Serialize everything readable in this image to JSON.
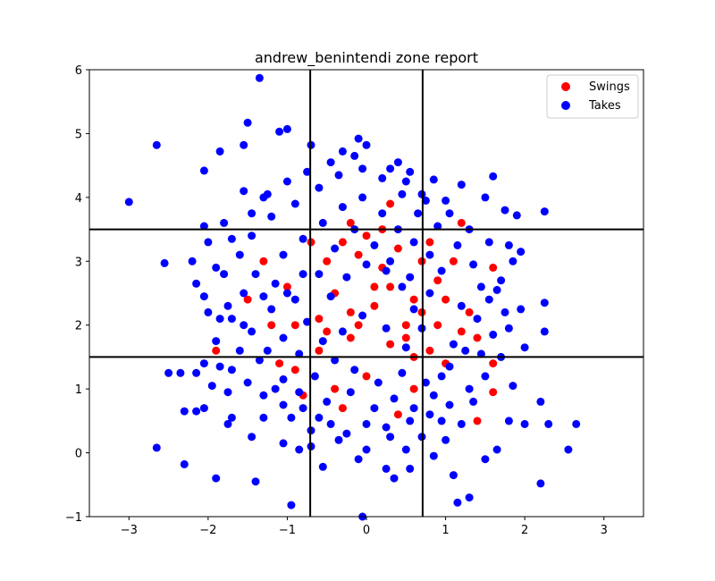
{
  "chart_data": {
    "type": "scatter",
    "title": "andrew_benintendi zone report",
    "xlabel": "",
    "ylabel": "",
    "xlim": [
      -3.5,
      3.5
    ],
    "ylim": [
      -1,
      6
    ],
    "xticks": [
      -3,
      -2,
      -1,
      0,
      1,
      2,
      3
    ],
    "yticks": [
      -1,
      0,
      1,
      2,
      3,
      4,
      5,
      6
    ],
    "grid": false,
    "legend_position": "top-right",
    "strike_zone": {
      "x": [
        -0.71,
        0.71
      ],
      "y": [
        1.5,
        3.5
      ]
    },
    "series": [
      {
        "name": "Swings",
        "color": "#ff0000",
        "points": [
          [
            1.6,
            2.9
          ],
          [
            1.2,
            3.6
          ],
          [
            1.1,
            3.0
          ],
          [
            0.8,
            1.6
          ],
          [
            1.2,
            1.9
          ],
          [
            0.5,
            1.8
          ],
          [
            0.3,
            3.9
          ],
          [
            0.1,
            2.6
          ],
          [
            -0.2,
            2.2
          ],
          [
            -0.5,
            3.0
          ],
          [
            -0.3,
            3.3
          ],
          [
            0.6,
            2.4
          ],
          [
            0.9,
            2.0
          ],
          [
            -0.6,
            1.6
          ],
          [
            -0.9,
            1.3
          ],
          [
            -1.2,
            2.0
          ],
          [
            -1.0,
            2.6
          ],
          [
            -0.7,
            3.3
          ],
          [
            0.4,
            3.2
          ],
          [
            0.7,
            3.0
          ],
          [
            0.9,
            2.7
          ],
          [
            1.3,
            2.2
          ],
          [
            1.4,
            1.8
          ],
          [
            1.0,
            1.4
          ],
          [
            0.6,
            1.0
          ],
          [
            0.0,
            1.2
          ],
          [
            -0.4,
            1.0
          ],
          [
            -0.8,
            0.9
          ],
          [
            -1.1,
            1.4
          ],
          [
            -1.5,
            2.4
          ],
          [
            -1.3,
            3.0
          ],
          [
            -0.2,
            3.6
          ],
          [
            0.2,
            3.5
          ],
          [
            0.4,
            0.6
          ],
          [
            1.6,
            0.95
          ],
          [
            1.6,
            1.4
          ],
          [
            1.4,
            0.5
          ],
          [
            -1.9,
            1.6
          ],
          [
            -0.3,
            0.7
          ],
          [
            0.5,
            2.0
          ],
          [
            0.2,
            2.9
          ],
          [
            -0.1,
            3.1
          ],
          [
            0.3,
            1.7
          ],
          [
            0.1,
            2.3
          ],
          [
            -0.4,
            2.5
          ],
          [
            -0.6,
            2.1
          ],
          [
            0.8,
            3.3
          ],
          [
            1.0,
            2.4
          ],
          [
            -0.9,
            2.0
          ],
          [
            -0.2,
            1.8
          ],
          [
            0.6,
            1.5
          ],
          [
            0.0,
            3.4
          ],
          [
            0.3,
            2.6
          ],
          [
            -0.5,
            1.9
          ],
          [
            0.7,
            2.2
          ],
          [
            -0.1,
            2.0
          ]
        ]
      },
      {
        "name": "Takes",
        "color": "#0000ff",
        "points": [
          [
            -1.35,
            5.87
          ],
          [
            -1.5,
            5.17
          ],
          [
            -1.0,
            5.07
          ],
          [
            -1.1,
            5.03
          ],
          [
            -2.65,
            4.82
          ],
          [
            -1.55,
            4.82
          ],
          [
            -1.85,
            4.72
          ],
          [
            -0.1,
            4.92
          ],
          [
            0.0,
            4.82
          ],
          [
            -0.7,
            4.82
          ],
          [
            -2.05,
            4.42
          ],
          [
            -0.3,
            4.72
          ],
          [
            0.4,
            4.55
          ],
          [
            0.55,
            4.4
          ],
          [
            1.6,
            4.33
          ],
          [
            0.85,
            4.28
          ],
          [
            1.2,
            4.2
          ],
          [
            -3.0,
            3.93
          ],
          [
            2.25,
            3.78
          ],
          [
            -2.05,
            3.55
          ],
          [
            -1.55,
            4.1
          ],
          [
            -1.3,
            4.0
          ],
          [
            1.5,
            4.0
          ],
          [
            0.7,
            4.05
          ],
          [
            1.0,
            3.95
          ],
          [
            1.75,
            3.8
          ],
          [
            1.9,
            3.72
          ],
          [
            -1.8,
            3.6
          ],
          [
            -2.55,
            2.97
          ],
          [
            -2.2,
            3.0
          ],
          [
            -2.0,
            3.3
          ],
          [
            -1.9,
            2.9
          ],
          [
            -2.15,
            2.65
          ],
          [
            -2.05,
            2.45
          ],
          [
            -2.0,
            2.2
          ],
          [
            -1.85,
            2.1
          ],
          [
            -1.9,
            1.75
          ],
          [
            -2.05,
            1.4
          ],
          [
            -1.85,
            1.35
          ],
          [
            -2.5,
            1.25
          ],
          [
            -2.35,
            1.25
          ],
          [
            -2.15,
            1.25
          ],
          [
            -2.3,
            0.65
          ],
          [
            -2.15,
            0.65
          ],
          [
            -2.05,
            0.7
          ],
          [
            -1.95,
            1.05
          ],
          [
            -1.75,
            0.95
          ],
          [
            -1.7,
            0.55
          ],
          [
            -1.75,
            0.45
          ],
          [
            -1.45,
            0.25
          ],
          [
            -1.3,
            0.55
          ],
          [
            -1.05,
            0.15
          ],
          [
            -0.85,
            0.05
          ],
          [
            -0.7,
            0.1
          ],
          [
            -2.65,
            0.08
          ],
          [
            -2.3,
            -0.18
          ],
          [
            -1.9,
            -0.4
          ],
          [
            -1.4,
            -0.45
          ],
          [
            -0.95,
            -0.82
          ],
          [
            -0.05,
            -1.0
          ],
          [
            -0.55,
            -0.22
          ],
          [
            -0.1,
            -0.1
          ],
          [
            0.25,
            -0.25
          ],
          [
            0.35,
            -0.4
          ],
          [
            0.55,
            -0.25
          ],
          [
            0.85,
            -0.05
          ],
          [
            1.1,
            -0.35
          ],
          [
            1.3,
            -0.7
          ],
          [
            1.15,
            -0.78
          ],
          [
            2.2,
            -0.48
          ],
          [
            1.5,
            -0.1
          ],
          [
            1.65,
            0.05
          ],
          [
            2.0,
            0.45
          ],
          [
            1.8,
            0.5
          ],
          [
            2.3,
            0.45
          ],
          [
            2.55,
            0.05
          ],
          [
            2.65,
            0.45
          ],
          [
            2.2,
            0.8
          ],
          [
            1.85,
            1.05
          ],
          [
            2.25,
            2.35
          ],
          [
            2.25,
            1.9
          ],
          [
            1.95,
            2.25
          ],
          [
            1.75,
            2.2
          ],
          [
            1.6,
            1.85
          ],
          [
            2.0,
            1.65
          ],
          [
            1.95,
            3.15
          ],
          [
            1.85,
            3.0
          ],
          [
            1.7,
            2.7
          ],
          [
            1.55,
            2.4
          ],
          [
            1.45,
            1.55
          ],
          [
            1.3,
            1.0
          ],
          [
            1.05,
            0.75
          ],
          [
            0.95,
            0.5
          ],
          [
            0.7,
            0.25
          ],
          [
            0.5,
            0.05
          ],
          [
            0.25,
            0.4
          ],
          [
            0.0,
            0.45
          ],
          [
            -0.25,
            0.3
          ],
          [
            -0.45,
            0.45
          ],
          [
            -0.6,
            0.55
          ],
          [
            -0.8,
            0.7
          ],
          [
            -1.05,
            0.75
          ],
          [
            -1.3,
            0.9
          ],
          [
            -1.5,
            1.1
          ],
          [
            -1.7,
            1.3
          ],
          [
            -1.6,
            1.6
          ],
          [
            -1.45,
            1.9
          ],
          [
            -1.7,
            2.1
          ],
          [
            -1.55,
            2.5
          ],
          [
            -1.4,
            2.8
          ],
          [
            -1.6,
            3.1
          ],
          [
            -1.45,
            3.4
          ],
          [
            -1.2,
            3.7
          ],
          [
            -0.9,
            3.9
          ],
          [
            -0.6,
            4.15
          ],
          [
            -0.35,
            4.35
          ],
          [
            -0.05,
            4.45
          ],
          [
            0.2,
            4.3
          ],
          [
            0.45,
            4.05
          ],
          [
            0.65,
            3.75
          ],
          [
            0.9,
            3.55
          ],
          [
            1.15,
            3.25
          ],
          [
            1.35,
            2.95
          ],
          [
            1.45,
            2.6
          ],
          [
            1.2,
            2.3
          ],
          [
            1.1,
            1.7
          ],
          [
            0.95,
            1.2
          ],
          [
            0.75,
            1.1
          ],
          [
            0.45,
            1.25
          ],
          [
            0.15,
            1.1
          ],
          [
            -0.15,
            1.3
          ],
          [
            -0.4,
            1.45
          ],
          [
            -0.65,
            1.2
          ],
          [
            -0.85,
            1.55
          ],
          [
            -1.05,
            1.8
          ],
          [
            -1.2,
            2.25
          ],
          [
            -1.0,
            2.5
          ],
          [
            -0.8,
            2.8
          ],
          [
            -1.05,
            3.1
          ],
          [
            -0.8,
            3.35
          ],
          [
            -0.55,
            3.6
          ],
          [
            -0.3,
            3.85
          ],
          [
            -0.05,
            4.0
          ],
          [
            0.2,
            3.75
          ],
          [
            0.4,
            3.5
          ],
          [
            0.6,
            3.3
          ],
          [
            0.8,
            3.1
          ],
          [
            0.95,
            2.85
          ],
          [
            0.8,
            2.5
          ],
          [
            0.6,
            2.25
          ],
          [
            0.45,
            2.6
          ],
          [
            0.25,
            2.85
          ],
          [
            0.0,
            2.95
          ],
          [
            -0.25,
            2.75
          ],
          [
            -0.45,
            2.45
          ],
          [
            -0.6,
            2.8
          ],
          [
            -0.4,
            3.2
          ],
          [
            -0.15,
            3.5
          ],
          [
            0.1,
            3.25
          ],
          [
            0.3,
            3.0
          ],
          [
            0.55,
            2.75
          ],
          [
            0.7,
            1.95
          ],
          [
            0.5,
            1.65
          ],
          [
            0.25,
            1.95
          ],
          [
            -0.05,
            2.15
          ],
          [
            -0.3,
            1.9
          ],
          [
            -0.55,
            1.75
          ],
          [
            -0.75,
            2.05
          ],
          [
            -0.9,
            2.4
          ],
          [
            -1.15,
            2.65
          ],
          [
            -1.3,
            2.45
          ],
          [
            -1.25,
            1.6
          ],
          [
            -1.05,
            1.15
          ],
          [
            -0.85,
            0.95
          ],
          [
            -0.5,
            0.8
          ],
          [
            -0.2,
            0.95
          ],
          [
            0.1,
            0.7
          ],
          [
            0.35,
            0.85
          ],
          [
            0.6,
            0.7
          ],
          [
            0.85,
            0.9
          ],
          [
            1.05,
            1.35
          ],
          [
            1.25,
            1.6
          ],
          [
            1.4,
            2.1
          ],
          [
            1.55,
            3.3
          ],
          [
            1.3,
            3.5
          ],
          [
            1.05,
            3.75
          ],
          [
            0.75,
            3.95
          ],
          [
            0.5,
            4.25
          ],
          [
            0.3,
            4.45
          ],
          [
            -0.15,
            4.65
          ],
          [
            -0.45,
            4.55
          ],
          [
            -0.75,
            4.4
          ],
          [
            -1.0,
            4.25
          ],
          [
            -1.25,
            4.05
          ],
          [
            -1.45,
            3.75
          ],
          [
            -1.7,
            3.35
          ],
          [
            -1.8,
            2.8
          ],
          [
            -1.75,
            2.3
          ],
          [
            -1.55,
            2.0
          ],
          [
            -1.35,
            1.45
          ],
          [
            -1.15,
            1.0
          ],
          [
            -0.95,
            0.55
          ],
          [
            -0.7,
            0.35
          ],
          [
            -0.35,
            0.2
          ],
          [
            0.0,
            0.05
          ],
          [
            0.3,
            0.25
          ],
          [
            0.55,
            0.5
          ],
          [
            0.8,
            0.6
          ],
          [
            1.0,
            0.2
          ],
          [
            1.2,
            0.45
          ],
          [
            1.35,
            0.8
          ],
          [
            1.5,
            1.2
          ],
          [
            1.7,
            1.5
          ],
          [
            1.8,
            1.95
          ],
          [
            1.65,
            2.55
          ],
          [
            1.8,
            3.25
          ]
        ]
      }
    ]
  }
}
